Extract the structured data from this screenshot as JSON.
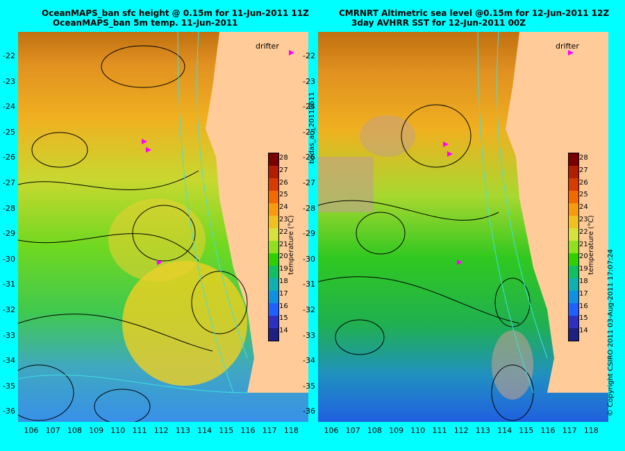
{
  "left_panel": {
    "title_line1": "OceanMAPS_ban sfc height @ 0.15m for 11-Jun-2011 11Z",
    "title_line2": "OceanMAPS_ban 5m temp. 11-Jun-2011"
  },
  "right_panel": {
    "title_line1": "CMRNRT Altimetric sea level  @0.15m  for 12-Jun-2011 12Z",
    "title_line2": "3day AVHRR SST for 12-Jun-2011 00Z"
  },
  "lat_labels": [
    "-22",
    "-23",
    "-24",
    "-25",
    "-26",
    "-27",
    "-28",
    "-29",
    "-30",
    "-31",
    "-32",
    "-33",
    "-34",
    "-35",
    "-36"
  ],
  "lon_labels": [
    "106",
    "107",
    "108",
    "109",
    "110",
    "111",
    "112",
    "113",
    "114",
    "115",
    "116",
    "117",
    "118"
  ],
  "colorbar": {
    "ticks": [
      "28",
      "27",
      "26",
      "25",
      "24",
      "23",
      "22",
      "21",
      "20",
      "19",
      "18",
      "17",
      "16",
      "15",
      "14"
    ],
    "label": "temperature (°C)",
    "colors": [
      "#7a0000",
      "#b01e00",
      "#d63c00",
      "#f06a00",
      "#f89a10",
      "#f0c020",
      "#d8e040",
      "#90e020",
      "#30d000",
      "#10c060",
      "#10b0b0",
      "#1090e0",
      "#2060ff",
      "#3030c0",
      "#202080"
    ]
  },
  "drifter_label": "drifter",
  "side_text": "bodas_an_20110611",
  "copyright": "© Copyright CSIRO 2011   03-Aug-2011 17:07:24",
  "colors": {
    "land": "#ffcc99",
    "background": "#00ffff",
    "drifter": "#ff00ff"
  }
}
